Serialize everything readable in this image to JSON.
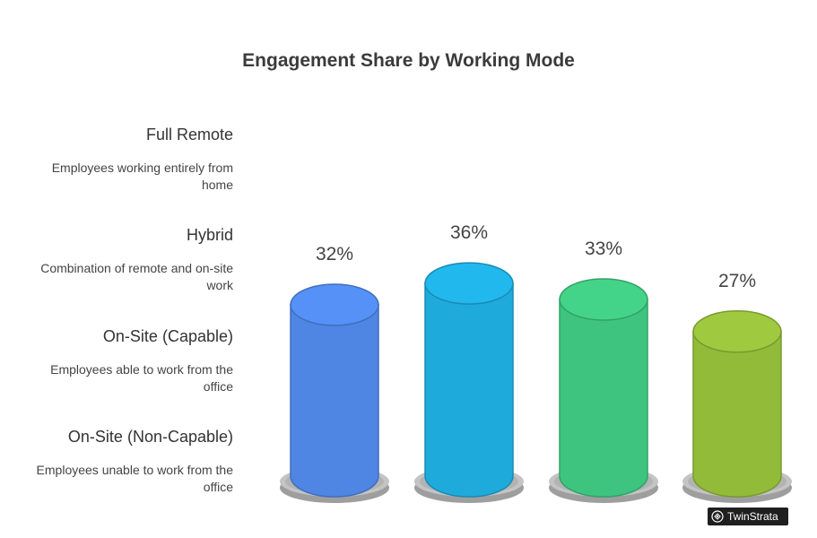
{
  "chart_data": {
    "type": "bar",
    "title": "Engagement Share by Working Mode",
    "categories": [
      "Full Remote",
      "Hybrid",
      "On-Site (Capable)",
      "On-Site (Non-Capable)"
    ],
    "descriptions": [
      "Employees working entirely from home",
      "Combination of remote and on-site work",
      "Employees able to work from the office",
      "Employees unable to work from the office"
    ],
    "values": [
      32,
      36,
      33,
      27
    ],
    "value_labels": [
      "32%",
      "36%",
      "33%",
      "27%"
    ],
    "colors": [
      "#4f86e4",
      "#1faadc",
      "#3ec47f",
      "#93bb3a"
    ],
    "ylim": [
      0,
      40
    ],
    "xlabel": "",
    "ylabel": "",
    "grid": false,
    "legend": "left"
  },
  "legend": {
    "items": [
      {
        "label": "Full Remote",
        "desc": "Employees working entirely from home"
      },
      {
        "label": "Hybrid",
        "desc": "Combination of remote and on-site work"
      },
      {
        "label": "On-Site (Capable)",
        "desc": "Employees able to work from the office"
      },
      {
        "label": "On-Site (Non-Capable)",
        "desc": "Employees unable to work from the office"
      }
    ]
  },
  "brand": {
    "text": "TwinStrata",
    "icon": "brain-icon"
  }
}
